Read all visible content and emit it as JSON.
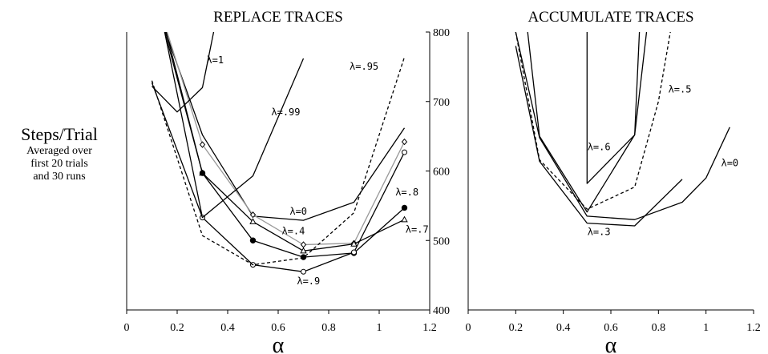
{
  "ylabel": {
    "title": "Steps/Trial",
    "lines": [
      "Averaged over",
      "first 20 trials",
      "and 30 runs"
    ]
  },
  "chart_data": [
    {
      "type": "line",
      "title": "REPLACE TRACES",
      "xlabel": "α",
      "xlim": [
        0,
        1.2
      ],
      "ylim": [
        400,
        800
      ],
      "xticks": [
        "0",
        "0.2",
        "0.4",
        "0.6",
        "0.8",
        "1",
        "1.2"
      ],
      "yticks": [
        "400",
        "500",
        "600",
        "700",
        "800"
      ],
      "series": [
        {
          "name": "λ=0",
          "style": "solid",
          "color": "#000000",
          "marker": "none",
          "x": [
            0.1,
            0.3,
            0.5,
            0.7,
            0.9,
            1.1
          ],
          "y": [
            855,
            652,
            535,
            529,
            555,
            662
          ]
        },
        {
          "name": "λ=.4",
          "style": "solid",
          "color": "#999999",
          "marker": "diamond",
          "x": [
            0.1,
            0.3,
            0.5,
            0.7,
            0.9,
            1.1
          ],
          "y": [
            870,
            638,
            537,
            494,
            496,
            642
          ]
        },
        {
          "name": "λ=.7",
          "style": "solid",
          "color": "#000000",
          "marker": "triangle",
          "x": [
            0.1,
            0.3,
            0.5,
            0.7,
            0.9,
            1.1
          ],
          "y": [
            870,
            597,
            527,
            485,
            495,
            530
          ]
        },
        {
          "name": "λ=.8",
          "style": "solid",
          "color": "#000000",
          "marker": "filled-circle",
          "x": [
            0.1,
            0.3,
            0.5,
            0.7,
            0.9,
            1.1
          ],
          "y": [
            880,
            597,
            500,
            476,
            482,
            547
          ]
        },
        {
          "name": "λ=.9",
          "style": "solid",
          "color": "#000000",
          "marker": "open-circle",
          "x": [
            0.1,
            0.3,
            0.5,
            0.7,
            0.9,
            1.1
          ],
          "y": [
            890,
            533,
            465,
            455,
            483,
            627
          ]
        },
        {
          "name": "λ=.95",
          "style": "dashed",
          "color": "#000000",
          "marker": "none",
          "x": [
            0.1,
            0.3,
            0.5,
            0.7,
            0.9,
            1.1
          ],
          "y": [
            730,
            507,
            465,
            475,
            540,
            764
          ]
        },
        {
          "name": "λ=.99",
          "style": "solid",
          "color": "#000000",
          "marker": "none",
          "x": [
            0.1,
            0.3,
            0.5,
            0.7
          ],
          "y": [
            727,
            533,
            593,
            762
          ]
        },
        {
          "name": "λ=1",
          "style": "solid",
          "color": "#000000",
          "marker": "none",
          "x": [
            0.1,
            0.2,
            0.3,
            0.4
          ],
          "y": [
            722,
            685,
            720,
            900
          ]
        }
      ]
    },
    {
      "type": "line",
      "title": "ACCUMULATE TRACES",
      "xlabel": "α",
      "xlim": [
        0,
        1.2
      ],
      "ylim": [
        400,
        800
      ],
      "xticks": [
        "0",
        "0.2",
        "0.4",
        "0.6",
        "0.8",
        "1",
        "1.2"
      ],
      "yticks": [
        "400",
        "500",
        "600",
        "700",
        "800"
      ],
      "series": [
        {
          "name": "λ=0",
          "style": "solid",
          "color": "#000000",
          "x": [
            0.2,
            0.3,
            0.5,
            0.7,
            0.9,
            1.0,
            1.1
          ],
          "y": [
            800,
            648,
            535,
            530,
            555,
            590,
            663
          ]
        },
        {
          "name": "λ=.3",
          "style": "solid",
          "color": "#000000",
          "x": [
            0.2,
            0.3,
            0.5,
            0.7,
            0.9
          ],
          "y": [
            780,
            614,
            525,
            521,
            588
          ]
        },
        {
          "name": "λ=.5",
          "style": "dashed",
          "color": "#000000",
          "x": [
            0.2,
            0.3,
            0.5,
            0.7,
            0.8,
            0.85
          ],
          "y": [
            800,
            616,
            545,
            577,
            700,
            800
          ]
        },
        {
          "name": "λ=.6",
          "style": "solid",
          "color": "#000000",
          "x": [
            0.25,
            0.3,
            0.5,
            0.7,
            0.75
          ],
          "y": [
            800,
            650,
            541,
            652,
            800
          ]
        },
        {
          "name": "",
          "style": "solid",
          "color": "#000000",
          "x": [
            0.5,
            0.5,
            0.7,
            0.72
          ],
          "y": [
            800,
            582,
            652,
            800
          ]
        }
      ]
    }
  ],
  "annotations": [
    [
      {
        "text": "λ=1",
        "x": 0.35,
        "y": 755
      },
      {
        "text": "λ=.99",
        "x": 0.63,
        "y": 680
      },
      {
        "text": "λ=.95",
        "x": 0.94,
        "y": 746
      },
      {
        "text": "λ=0",
        "x": 0.68,
        "y": 537
      },
      {
        "text": "λ=.4",
        "x": 0.66,
        "y": 509
      },
      {
        "text": "λ=.8",
        "x": 1.11,
        "y": 565
      },
      {
        "text": "λ=.7",
        "x": 1.15,
        "y": 511
      },
      {
        "text": "λ=.9",
        "x": 0.72,
        "y": 437
      }
    ],
    [
      {
        "text": "λ=.5",
        "x": 0.89,
        "y": 713
      },
      {
        "text": "λ=.6",
        "x": 0.55,
        "y": 630
      },
      {
        "text": "λ=0",
        "x": 1.1,
        "y": 607
      },
      {
        "text": "λ=.3",
        "x": 0.55,
        "y": 508
      }
    ]
  ]
}
